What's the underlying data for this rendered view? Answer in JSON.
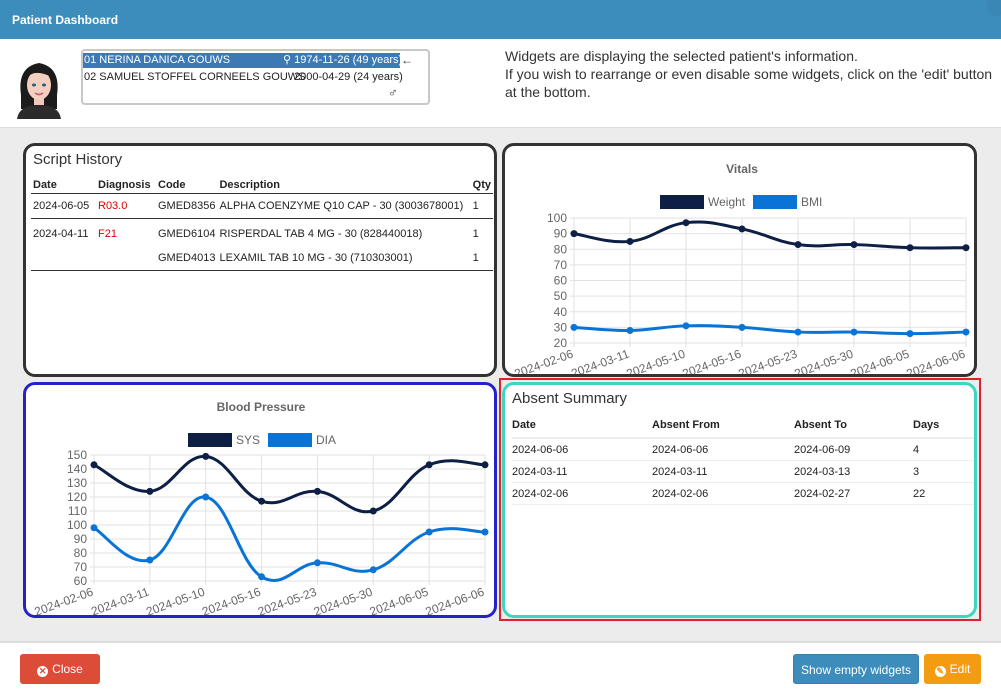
{
  "window": {
    "title": "Patient Dashboard"
  },
  "patients": [
    {
      "name": "01 NERINA DANICA GOUWS",
      "dob": "1974-11-26 (49 years)",
      "selected": true
    },
    {
      "name": "02 SAMUEL STOFFEL CORNEELS GOUWS",
      "dob": "2000-04-29 (24 years)",
      "selected": false
    }
  ],
  "info": {
    "line1": "Widgets are displaying the selected patient's information.",
    "line2": "If you wish to rearrange or even disable some widgets, click on the 'edit' button at the bottom."
  },
  "script_history": {
    "title": "Script History",
    "headers": {
      "date": "Date",
      "diagnosis": "Diagnosis",
      "code": "Code",
      "description": "Description",
      "qty": "Qty"
    },
    "rows": [
      {
        "date": "2024-06-05",
        "diagnosis": "R03.0",
        "code": "GMED8356",
        "description": "ALPHA COENZYME Q10 CAP - 30 (3003678001)",
        "qty": "1"
      },
      {
        "date": "2024-04-11",
        "diagnosis": "F21",
        "code": "GMED6104",
        "description": "RISPERDAL TAB 4 MG - 30 (828440018)",
        "qty": "1"
      },
      {
        "date": "",
        "diagnosis": "",
        "code": "GMED4013",
        "description": "LEXAMIL TAB 10 MG - 30 (710303001)",
        "qty": "1"
      }
    ]
  },
  "absent_summary": {
    "title": "Absent Summary",
    "headers": {
      "date": "Date",
      "from": "Absent From",
      "to": "Absent To",
      "days": "Days"
    },
    "rows": [
      {
        "date": "2024-06-06",
        "from": "2024-06-06",
        "to": "2024-06-09",
        "days": "4"
      },
      {
        "date": "2024-03-11",
        "from": "2024-03-11",
        "to": "2024-03-13",
        "days": "3"
      },
      {
        "date": "2024-02-06",
        "from": "2024-02-06",
        "to": "2024-02-27",
        "days": "22"
      }
    ]
  },
  "footer": {
    "close_label": "Close",
    "empty_widgets_label": "Show empty widgets",
    "edit_label": "Edit"
  },
  "colors": {
    "header": "#3c8dbc",
    "series_dark": "#0d1f45",
    "series_blue": "#0a74d6",
    "close": "#dd4b39",
    "edit": "#f39c12"
  },
  "chart_data": [
    {
      "type": "line",
      "title": "Vitals",
      "x": [
        "2024-02-06",
        "2024-03-11",
        "2024-05-10",
        "2024-05-16",
        "2024-05-23",
        "2024-05-30",
        "2024-06-05",
        "2024-06-06"
      ],
      "series": [
        {
          "name": "Weight",
          "values": [
            90,
            85,
            97,
            93,
            83,
            83,
            81,
            81
          ]
        },
        {
          "name": "BMI",
          "values": [
            30,
            28,
            31,
            30,
            27,
            27,
            26,
            27
          ]
        }
      ],
      "ylim": [
        20,
        100
      ],
      "yticks": [
        20,
        30,
        40,
        50,
        60,
        70,
        80,
        90,
        100
      ],
      "legend": "top-center",
      "grid": true
    },
    {
      "type": "line",
      "title": "Blood Pressure",
      "x": [
        "2024-02-06",
        "2024-03-11",
        "2024-05-10",
        "2024-05-16",
        "2024-05-23",
        "2024-05-30",
        "2024-06-05",
        "2024-06-06"
      ],
      "series": [
        {
          "name": "SYS",
          "values": [
            143,
            124,
            149,
            117,
            124,
            110,
            143,
            143
          ]
        },
        {
          "name": "DIA",
          "values": [
            98,
            75,
            120,
            63,
            73,
            68,
            95,
            95
          ]
        }
      ],
      "ylim": [
        60,
        150
      ],
      "yticks": [
        60,
        70,
        80,
        90,
        100,
        110,
        120,
        130,
        140,
        150
      ],
      "legend": "top-center",
      "grid": true
    }
  ]
}
